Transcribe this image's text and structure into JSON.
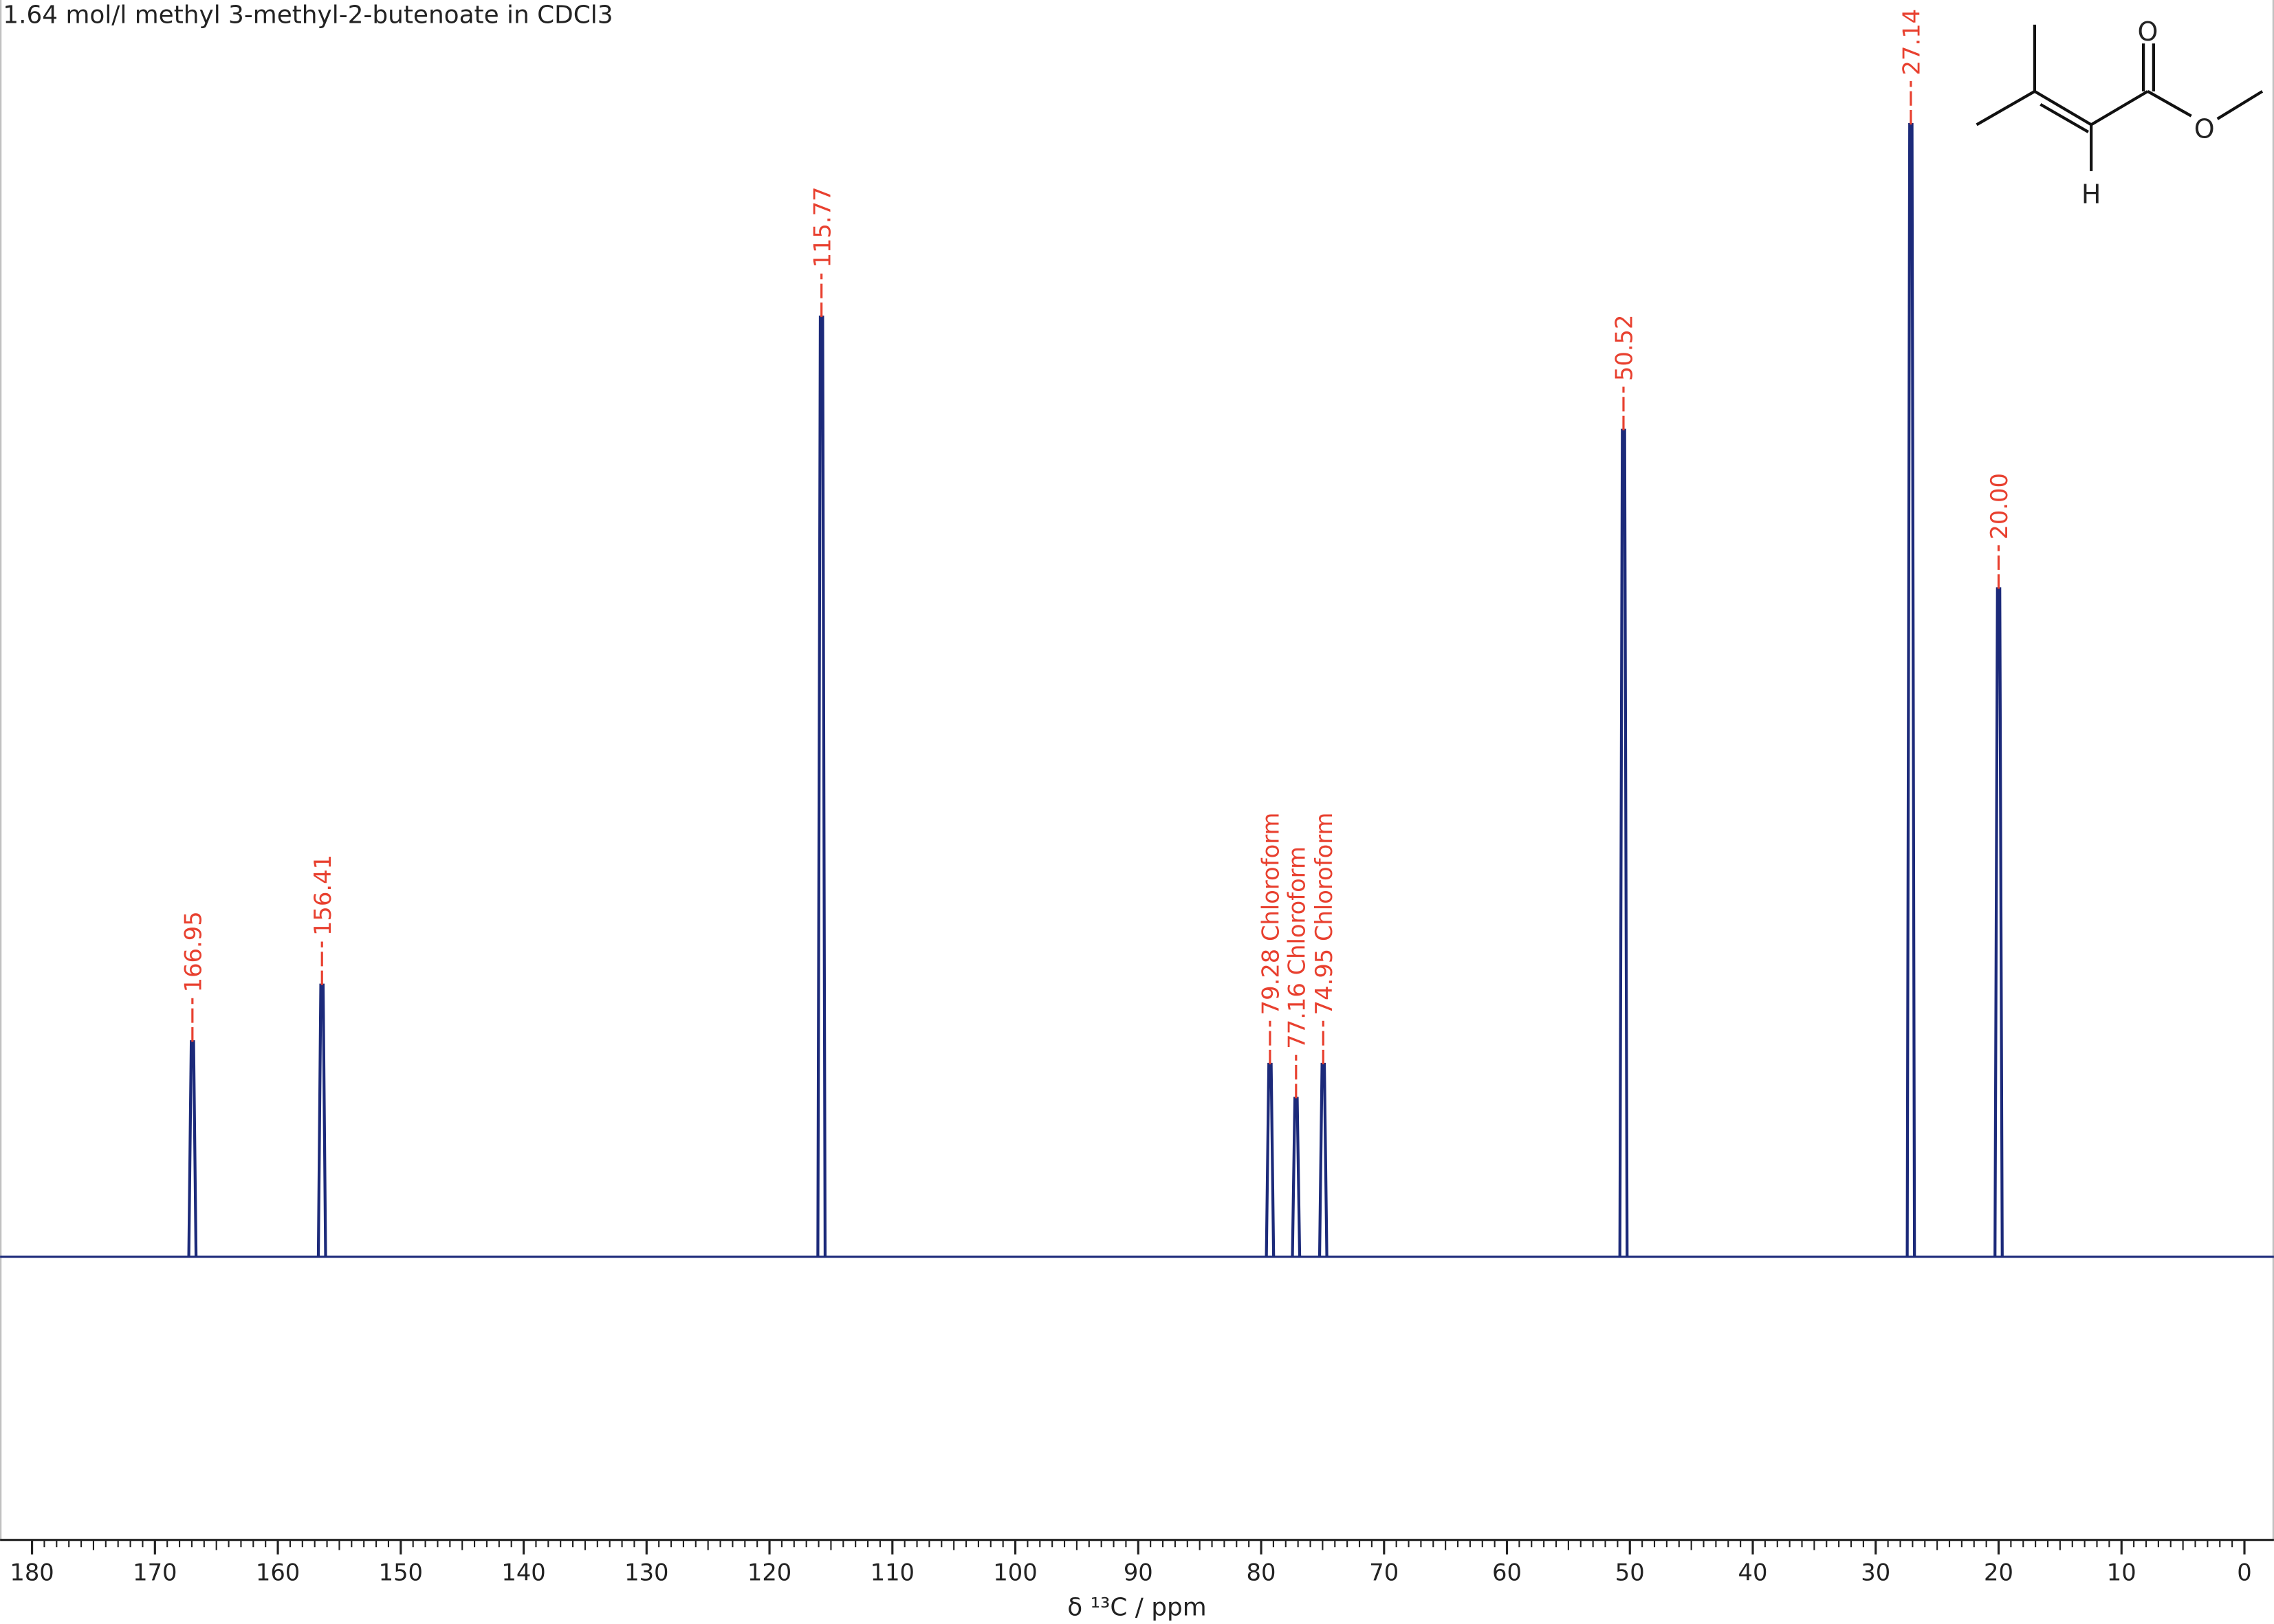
{
  "chart_data": {
    "type": "spectrum",
    "title": "1.64 mol/l methyl 3-methyl-2-butenoate in CDCl3",
    "x_label": "δ ¹³C / ppm",
    "xlim": [
      182.6,
      -2.4
    ],
    "xticks": [
      180,
      170,
      160,
      150,
      140,
      130,
      120,
      110,
      100,
      90,
      80,
      70,
      60,
      50,
      40,
      30,
      20,
      10,
      0
    ],
    "ylim": [
      -25,
      111
    ],
    "color": "#1c2a7a",
    "label_color": "#e8402f",
    "peaks": [
      {
        "ppm": 166.95,
        "height": 19,
        "label": "166.95"
      },
      {
        "ppm": 156.41,
        "height": 24,
        "label": "156.41"
      },
      {
        "ppm": 115.77,
        "height": 83,
        "label": "115.77"
      },
      {
        "ppm": 79.28,
        "height": 17,
        "label": "79.28 Chloroform"
      },
      {
        "ppm": 77.16,
        "height": 14,
        "label": "77.16 Chloroform"
      },
      {
        "ppm": 74.95,
        "height": 17,
        "label": "74.95 Chloroform"
      },
      {
        "ppm": 50.52,
        "height": 73,
        "label": "50.52"
      },
      {
        "ppm": 27.14,
        "height": 100,
        "label": "27.14"
      },
      {
        "ppm": 20.0,
        "height": 59,
        "label": "20.00"
      }
    ]
  },
  "structure": {
    "atoms": [
      "O",
      "O",
      "H"
    ]
  }
}
